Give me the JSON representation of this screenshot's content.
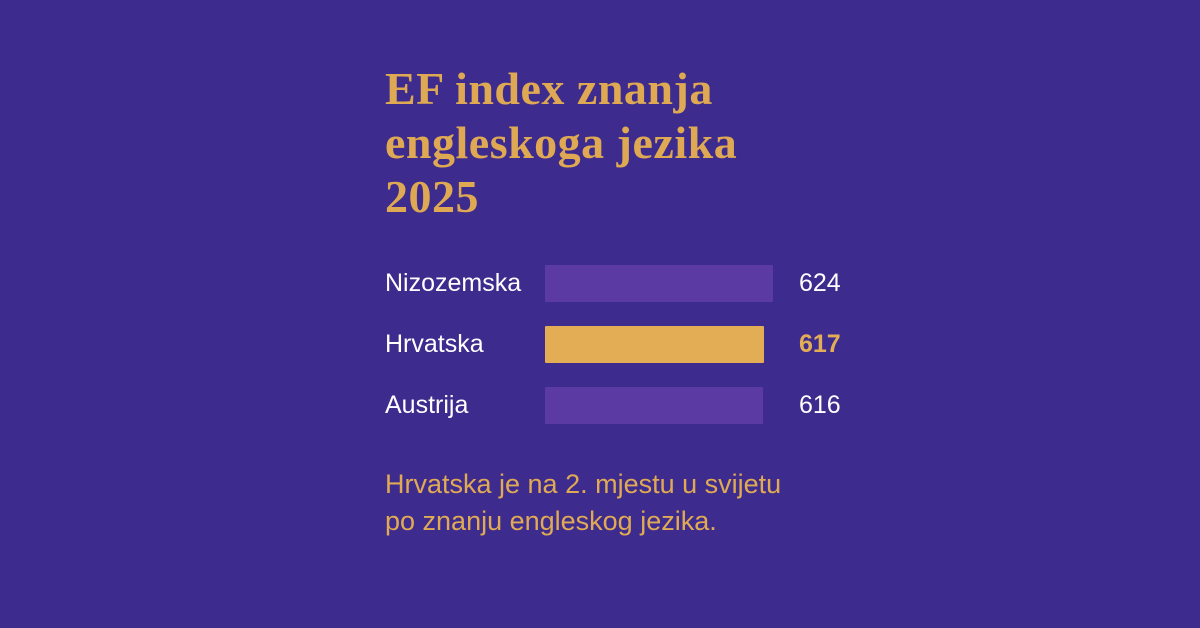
{
  "background_color": "#3d2b8e",
  "title": {
    "text": "EF index znanja\nengleskoga jezika\n2025"
  },
  "chart_data": {
    "type": "bar",
    "orientation": "horizontal",
    "title": "EF index znanja engleskoga jezika 2025",
    "categories": [
      "Nizozemska",
      "Hrvatska",
      "Austrija"
    ],
    "values": [
      624,
      617,
      616
    ],
    "highlight_category": "Hrvatska",
    "axis_min": 450,
    "grid": false,
    "legend": false,
    "colors": {
      "bar": "#5c3aa4",
      "highlight_bar": "#e3ad56",
      "value_text": "#ffffff",
      "highlight_value_text": "#e3ad56",
      "label_text": "#ffffff"
    }
  },
  "footer": {
    "text": "Hrvatska je na 2. mjestu u svijetu\npo znanju engleskog jezika."
  }
}
